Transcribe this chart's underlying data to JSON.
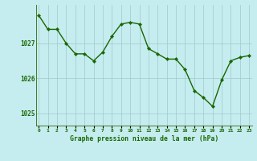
{
  "hours": [
    0,
    1,
    2,
    3,
    4,
    5,
    6,
    7,
    8,
    9,
    10,
    11,
    12,
    13,
    14,
    15,
    16,
    17,
    18,
    19,
    20,
    21,
    22,
    23
  ],
  "pressure": [
    1027.8,
    1027.4,
    1027.4,
    1027.0,
    1026.7,
    1026.7,
    1026.5,
    1026.75,
    1027.2,
    1027.55,
    1027.6,
    1027.55,
    1026.85,
    1026.7,
    1026.55,
    1026.55,
    1026.25,
    1025.65,
    1025.45,
    1025.2,
    1025.95,
    1026.5,
    1026.6,
    1026.65
  ],
  "ylim": [
    1024.65,
    1028.1
  ],
  "yticks": [
    1025,
    1026,
    1027
  ],
  "xlabel": "Graphe pression niveau de la mer (hPa)",
  "bg_color": "#c5edf0",
  "line_color": "#1a6600",
  "marker_color": "#1a6600",
  "grid_color": "#a0c8cc",
  "axis_color": "#336600",
  "tick_label_color": "#1a6600",
  "xlabel_color": "#1a6600"
}
